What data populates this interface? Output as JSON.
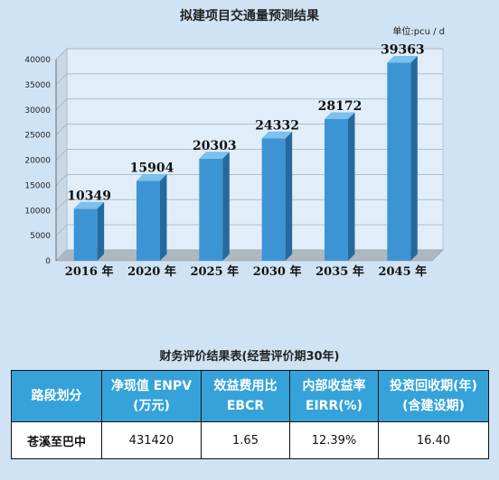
{
  "chart_data": {
    "type": "bar",
    "title": "拟建项目交通量预测结果",
    "unit": "单位:pcu / d",
    "categories": [
      "2016 年",
      "2020 年",
      "2025 年",
      "2030 年",
      "2035 年",
      "2045 年"
    ],
    "values": [
      10349,
      15904,
      20303,
      24332,
      28172,
      39363
    ],
    "ylim": [
      0,
      40000
    ],
    "yticks": [
      0,
      5000,
      10000,
      15000,
      20000,
      25000,
      30000,
      35000,
      40000
    ],
    "grid": true,
    "colors": {
      "bar_front": "#3d94d4",
      "bar_top": "#7cc0ec",
      "bar_side": "#236a9f",
      "plot_bg": "#e1eef9",
      "floor": "#aeb8c1"
    }
  },
  "table": {
    "title": "财务评价结果表(经营评价期30年)",
    "headers": [
      [
        "路段划分"
      ],
      [
        "净现值 ENPV",
        "(万元)"
      ],
      [
        "效益费用比",
        "EBCR"
      ],
      [
        "内部收益率",
        "EIRR(%)"
      ],
      [
        "投资回收期(年)",
        "(含建设期)"
      ]
    ],
    "rows": [
      [
        "苍溪至巴中",
        "431420",
        "1.65",
        "12.39%",
        "16.40"
      ]
    ],
    "header_color": "#35a3d9"
  }
}
